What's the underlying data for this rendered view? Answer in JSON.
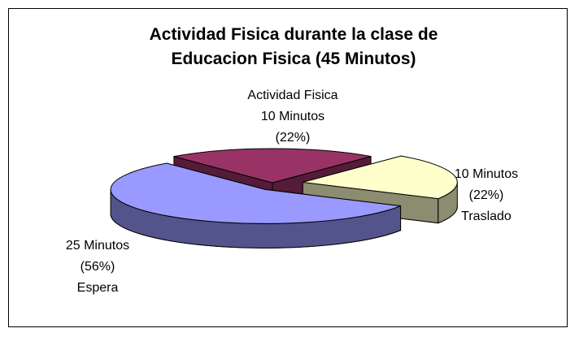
{
  "chart_data": {
    "type": "pie",
    "three_d": true,
    "title": "Actividad Fisica durante la clase de Educacion Fisica (45 Minutos)",
    "categories": [
      "Actividad Fisica",
      "Traslado",
      "Espera"
    ],
    "values": [
      22,
      22,
      56
    ],
    "value_labels": [
      "(22%)",
      "(22%)",
      "(56%)"
    ],
    "minute_labels": [
      "10 Minutos",
      "10 Minutos",
      "25 Minutos"
    ],
    "colors": [
      "#993366",
      "#ffffcc",
      "#9999ff"
    ]
  }
}
